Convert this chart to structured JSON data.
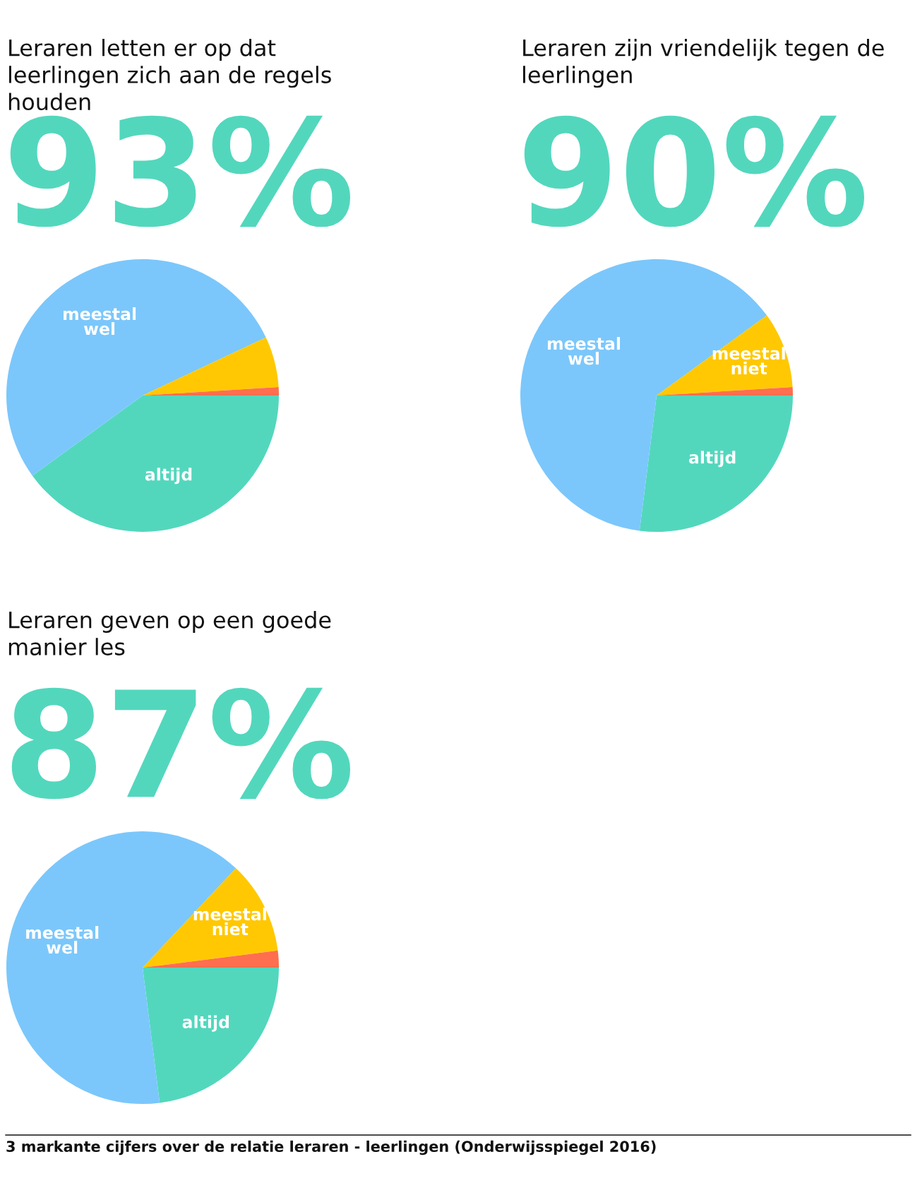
{
  "chart_data": [
    {
      "type": "pie",
      "title": "Leraren letten er op dat leerlingen zich aan de regels houden",
      "annotations": [
        "93%"
      ],
      "categories": [
        "altijd",
        "meestal wel",
        null,
        null
      ],
      "values": [
        40,
        53,
        6,
        1
      ],
      "colors": [
        "#52d7bd",
        "#7bc7fb",
        "#ffc803",
        "#ff6e4e"
      ]
    },
    {
      "type": "pie",
      "title": "Leraren zijn vriendelijk tegen de leerlingen",
      "annotations": [
        "90%"
      ],
      "categories": [
        "altijd",
        "meestal wel",
        "meestal niet",
        null
      ],
      "values": [
        27,
        63,
        9,
        1
      ],
      "colors": [
        "#52d7bd",
        "#7bc7fb",
        "#ffc803",
        "#ff6e4e"
      ]
    },
    {
      "type": "pie",
      "title": "Leraren geven op een goede manier les",
      "annotations": [
        "87%",
        "3 markante cijfers over de relatie leraren - leerlingen (Onderwijsspiegel 2016)"
      ],
      "categories": [
        "altijd",
        "meestal wel",
        "meestal niet",
        null
      ],
      "values": [
        23,
        64,
        11,
        2
      ],
      "colors": [
        "#52d7bd",
        "#7bc7fb",
        "#ffc803",
        "#ff6e4e"
      ]
    }
  ]
}
